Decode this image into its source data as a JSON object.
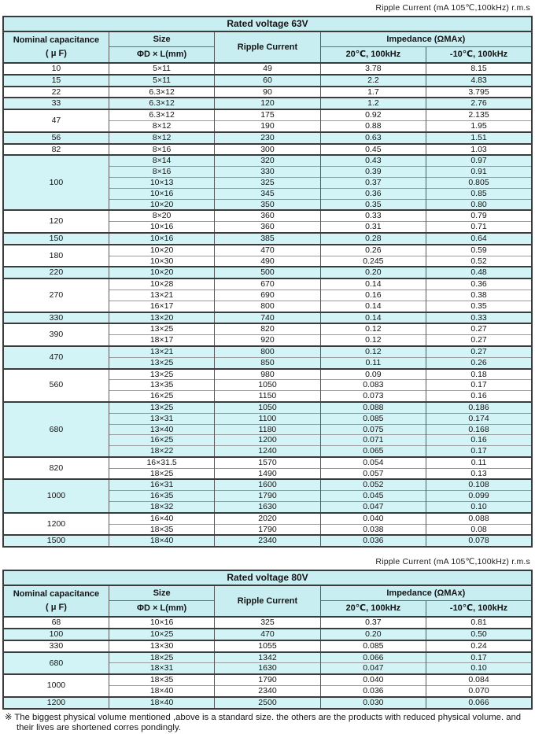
{
  "columns": {
    "capacitance_line1": "Nominal capacitance",
    "capacitance_line2": "( μ F)",
    "size": "Size",
    "size_sub": "ΦD × L(mm)",
    "ripple": "Ripple Current",
    "impedance": "Impedance (ΩMAx)",
    "impedance_20": "20℃, 100kHz",
    "impedance_m10": "-10℃, 100kHz"
  },
  "row_value_order": [
    "size_mm",
    "ripple_current_mA",
    "impedance_20C_100kHz",
    "impedance_m10C_100kHz"
  ],
  "tables": [
    {
      "caption": "Ripple Current (mA 105℃,100kHz) r.m.s",
      "title": "Rated voltage 63V",
      "groups": [
        {
          "capacitance": "10",
          "shaded": false,
          "rows": [
            [
              "5×11",
              "49",
              "3.78",
              "8.15"
            ]
          ]
        },
        {
          "capacitance": "15",
          "shaded": true,
          "rows": [
            [
              "5×11",
              "60",
              "2.2",
              "4.83"
            ]
          ]
        },
        {
          "capacitance": "22",
          "shaded": false,
          "rows": [
            [
              "6.3×12",
              "90",
              "1.7",
              "3.795"
            ]
          ]
        },
        {
          "capacitance": "33",
          "shaded": true,
          "rows": [
            [
              "6.3×12",
              "120",
              "1.2",
              "2.76"
            ]
          ]
        },
        {
          "capacitance": "47",
          "shaded": false,
          "rows": [
            [
              "6.3×12",
              "175",
              "0.92",
              "2.135"
            ],
            [
              "8×12",
              "190",
              "0.88",
              "1.95"
            ]
          ]
        },
        {
          "capacitance": "56",
          "shaded": true,
          "rows": [
            [
              "8×12",
              "230",
              "0.63",
              "1.51"
            ]
          ]
        },
        {
          "capacitance": "82",
          "shaded": false,
          "rows": [
            [
              "8×16",
              "300",
              "0.45",
              "1.03"
            ]
          ]
        },
        {
          "capacitance": "100",
          "shaded": true,
          "rows": [
            [
              "8×14",
              "320",
              "0.43",
              "0.97"
            ],
            [
              "8×16",
              "330",
              "0.39",
              "0.91"
            ],
            [
              "10×13",
              "325",
              "0.37",
              "0.805"
            ],
            [
              "10×16",
              "345",
              "0.36",
              "0.85"
            ],
            [
              "10×20",
              "350",
              "0.35",
              "0.80"
            ]
          ]
        },
        {
          "capacitance": "120",
          "shaded": false,
          "rows": [
            [
              "8×20",
              "360",
              "0.33",
              "0.79"
            ],
            [
              "10×16",
              "360",
              "0.31",
              "0.71"
            ]
          ]
        },
        {
          "capacitance": "150",
          "shaded": true,
          "rows": [
            [
              "10×16",
              "385",
              "0.28",
              "0.64"
            ]
          ]
        },
        {
          "capacitance": "180",
          "shaded": false,
          "rows": [
            [
              "10×20",
              "470",
              "0.26",
              "0.59"
            ],
            [
              "10×30",
              "490",
              "0.245",
              "0.52"
            ]
          ]
        },
        {
          "capacitance": "220",
          "shaded": true,
          "rows": [
            [
              "10×20",
              "500",
              "0.20",
              "0.48"
            ]
          ]
        },
        {
          "capacitance": "270",
          "shaded": false,
          "rows": [
            [
              "10×28",
              "670",
              "0.14",
              "0.36"
            ],
            [
              "13×21",
              "690",
              "0.16",
              "0.38"
            ],
            [
              "16×17",
              "800",
              "0.14",
              "0.35"
            ]
          ]
        },
        {
          "capacitance": "330",
          "shaded": true,
          "rows": [
            [
              "13×20",
              "740",
              "0.14",
              "0.33"
            ]
          ]
        },
        {
          "capacitance": "390",
          "shaded": false,
          "rows": [
            [
              "13×25",
              "820",
              "0.12",
              "0.27"
            ],
            [
              "18×17",
              "920",
              "0.12",
              "0.27"
            ]
          ]
        },
        {
          "capacitance": "470",
          "shaded": true,
          "rows": [
            [
              "13×21",
              "800",
              "0.12",
              "0.27"
            ],
            [
              "13×25",
              "850",
              "0.11",
              "0.26"
            ]
          ]
        },
        {
          "capacitance": "560",
          "shaded": false,
          "rows": [
            [
              "13×25",
              "980",
              "0.09",
              "0.18"
            ],
            [
              "13×35",
              "1050",
              "0.083",
              "0.17"
            ],
            [
              "16×25",
              "1150",
              "0.073",
              "0.16"
            ]
          ]
        },
        {
          "capacitance": "680",
          "shaded": true,
          "rows": [
            [
              "13×25",
              "1050",
              "0.088",
              "0.186"
            ],
            [
              "13×31",
              "1100",
              "0.085",
              "0.174"
            ],
            [
              "13×40",
              "1180",
              "0.075",
              "0.168"
            ],
            [
              "16×25",
              "1200",
              "0.071",
              "0.16"
            ],
            [
              "18×22",
              "1240",
              "0.065",
              "0.17"
            ]
          ]
        },
        {
          "capacitance": "820",
          "shaded": false,
          "rows": [
            [
              "16×31.5",
              "1570",
              "0.054",
              "0.11"
            ],
            [
              "18×25",
              "1490",
              "0.057",
              "0.13"
            ]
          ]
        },
        {
          "capacitance": "1000",
          "shaded": true,
          "rows": [
            [
              "16×31",
              "1600",
              "0.052",
              "0.108"
            ],
            [
              "16×35",
              "1790",
              "0.045",
              "0.099"
            ],
            [
              "18×32",
              "1630",
              "0.047",
              "0.10"
            ]
          ]
        },
        {
          "capacitance": "1200",
          "shaded": false,
          "rows": [
            [
              "16×40",
              "2020",
              "0.040",
              "0.088"
            ],
            [
              "18×35",
              "1790",
              "0.038",
              "0.08"
            ]
          ]
        },
        {
          "capacitance": "1500",
          "shaded": true,
          "rows": [
            [
              "18×40",
              "2340",
              "0.036",
              "0.078"
            ]
          ]
        }
      ]
    },
    {
      "caption": "Ripple Current (mA 105℃,100kHz) r.m.s",
      "title": "Rated voltage 80V",
      "groups": [
        {
          "capacitance": "68",
          "shaded": false,
          "rows": [
            [
              "10×16",
              "325",
              "0.37",
              "0.81"
            ]
          ]
        },
        {
          "capacitance": "100",
          "shaded": true,
          "rows": [
            [
              "10×25",
              "470",
              "0.20",
              "0.50"
            ]
          ]
        },
        {
          "capacitance": "330",
          "shaded": false,
          "rows": [
            [
              "13×30",
              "1055",
              "0.085",
              "0.24"
            ]
          ]
        },
        {
          "capacitance": "680",
          "shaded": true,
          "rows": [
            [
              "18×25",
              "1342",
              "0.066",
              "0.17"
            ],
            [
              "18×31",
              "1630",
              "0.047",
              "0.10"
            ]
          ]
        },
        {
          "capacitance": "1000",
          "shaded": false,
          "rows": [
            [
              "18×35",
              "1790",
              "0.040",
              "0.084"
            ],
            [
              "18×40",
              "2340",
              "0.036",
              "0.070"
            ]
          ]
        },
        {
          "capacitance": "1200",
          "shaded": true,
          "rows": [
            [
              "18×40",
              "2500",
              "0.030",
              "0.066"
            ]
          ]
        }
      ]
    }
  ],
  "footnote": {
    "marker": "※",
    "text": "The biggest physical volume mentioned ,above is a standard size. the others are the products with reduced physical volume. and their lives are shortened corres pondingly."
  }
}
